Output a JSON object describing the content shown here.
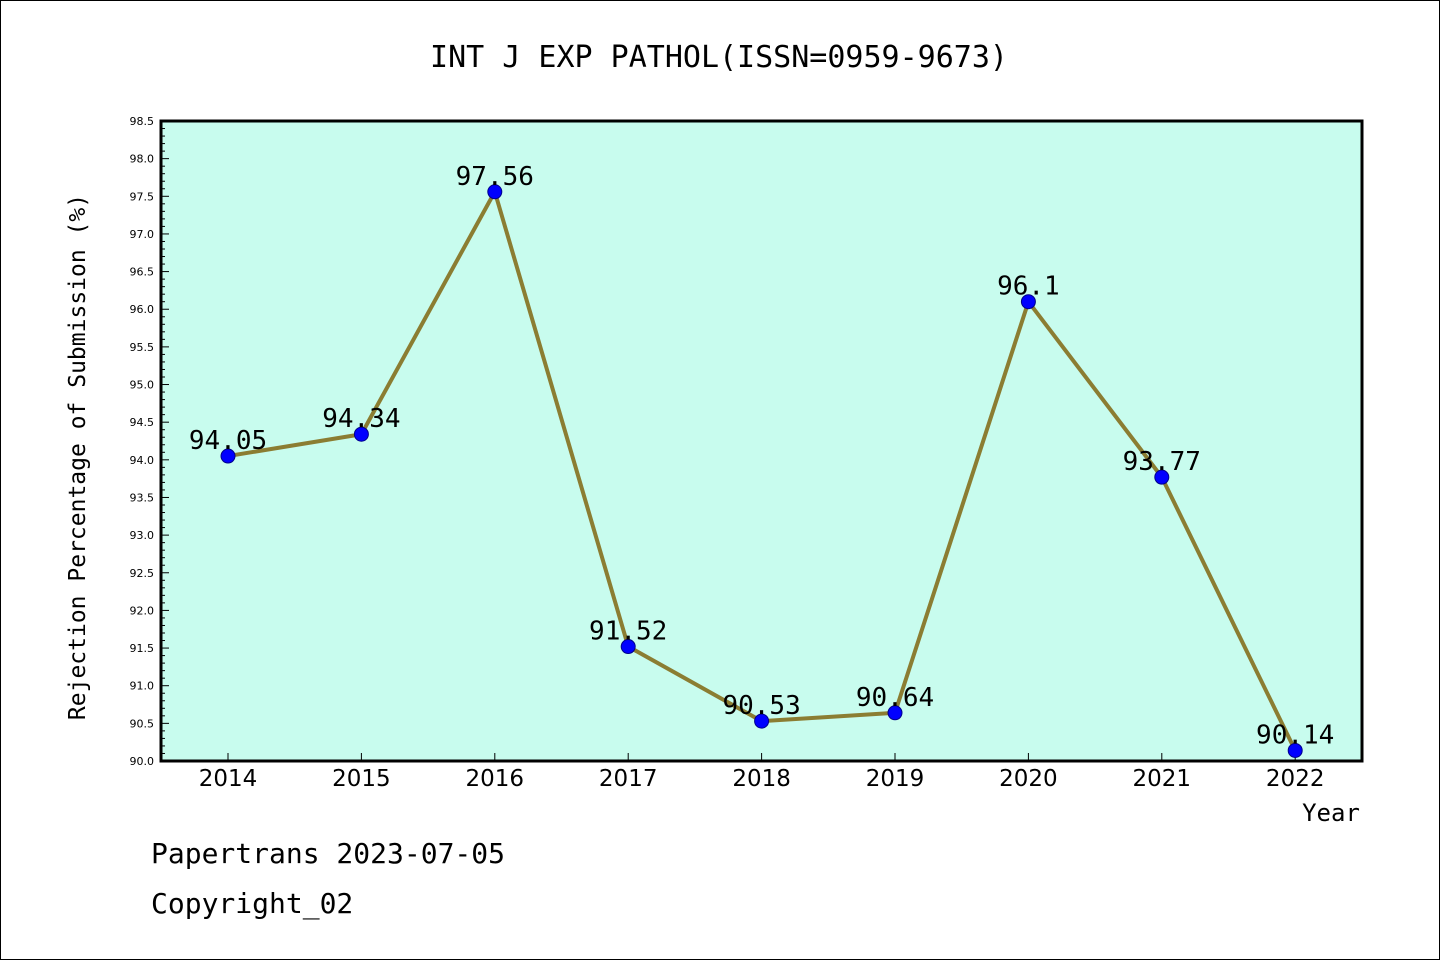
{
  "chart_data": {
    "type": "line",
    "title": "INT J EXP PATHOL(ISSN=0959-9673)",
    "xlabel": "Year",
    "ylabel": "Rejection Percentage of Submission (%)",
    "categories": [
      "2014",
      "2015",
      "2016",
      "2017",
      "2018",
      "2019",
      "2020",
      "2021",
      "2022"
    ],
    "series": [
      {
        "values": [
          94.05,
          94.34,
          97.56,
          91.52,
          90.53,
          90.64,
          96.1,
          93.77,
          90.14
        ],
        "data_labels": [
          "94.05",
          "94.34",
          "97.56",
          "91.52",
          "90.53",
          "90.64",
          "96.1",
          "93.77",
          "90.14"
        ],
        "line_color": "#8b7d32",
        "marker_color": "#0000ff"
      }
    ],
    "ylim": [
      90.0,
      98.5
    ],
    "yticks": [
      "90.0",
      "90.5",
      "91.0",
      "91.5",
      "92.0",
      "92.5",
      "93.0",
      "93.5",
      "94.0",
      "94.5",
      "95.0",
      "95.5",
      "96.0",
      "96.5",
      "97.0",
      "97.5",
      "98.0",
      "98.5"
    ],
    "grid": false,
    "plot_background": "#c8fcee"
  },
  "footer": {
    "line1": "Papertrans 2023-07-05",
    "line2": "Copyright_02"
  }
}
